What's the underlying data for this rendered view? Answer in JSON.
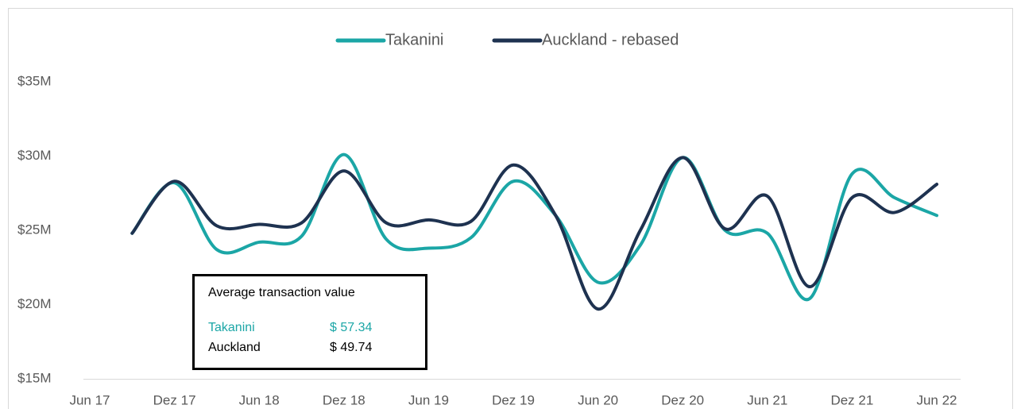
{
  "chart_data": {
    "type": "line",
    "x": [
      3,
      6,
      9,
      12,
      15,
      18,
      21,
      24,
      27,
      30,
      33,
      36,
      39,
      42,
      45,
      48,
      51,
      54,
      57,
      60
    ],
    "series": [
      {
        "name": "Takanini",
        "color": "#1ba6a6",
        "values": [
          24.8,
          28.2,
          23.7,
          24.2,
          24.6,
          30.1,
          24.4,
          23.8,
          24.5,
          28.3,
          26.0,
          21.5,
          24.0,
          29.9,
          25.0,
          24.8,
          20.4,
          28.8,
          27.2,
          26.0
        ]
      },
      {
        "name": "Auckland - rebased",
        "color": "#1e3250",
        "values": [
          24.8,
          28.3,
          25.3,
          25.4,
          25.5,
          29.0,
          25.5,
          25.7,
          25.6,
          29.4,
          26.0,
          19.7,
          25.0,
          29.9,
          25.1,
          27.3,
          21.2,
          27.2,
          26.2,
          28.1
        ]
      }
    ],
    "xlim": [
      0,
      60
    ],
    "xticks": [
      {
        "value": 0,
        "label": "Jun 17"
      },
      {
        "value": 6,
        "label": "Dez 17"
      },
      {
        "value": 12,
        "label": "Jun 18"
      },
      {
        "value": 18,
        "label": "Dez 18"
      },
      {
        "value": 24,
        "label": "Jun 19"
      },
      {
        "value": 30,
        "label": "Dez 19"
      },
      {
        "value": 36,
        "label": "Jun 20"
      },
      {
        "value": 42,
        "label": "Dez 20"
      },
      {
        "value": 48,
        "label": "Jun 21"
      },
      {
        "value": 54,
        "label": "Dez 21"
      },
      {
        "value": 60,
        "label": "Jun 22"
      }
    ],
    "ylim": [
      15,
      35
    ],
    "yticks": [
      {
        "value": 15,
        "label": "$15M"
      },
      {
        "value": 20,
        "label": "$20M"
      },
      {
        "value": 25,
        "label": "$25M"
      },
      {
        "value": 30,
        "label": "$30M"
      },
      {
        "value": 35,
        "label": "$35M"
      }
    ],
    "grid": false,
    "legend": "top",
    "annotation": {
      "title": "Average transaction value",
      "rows": [
        [
          "Takanini",
          "$ 57.34"
        ],
        [
          "Auckland",
          "$ 49.74"
        ]
      ]
    }
  }
}
